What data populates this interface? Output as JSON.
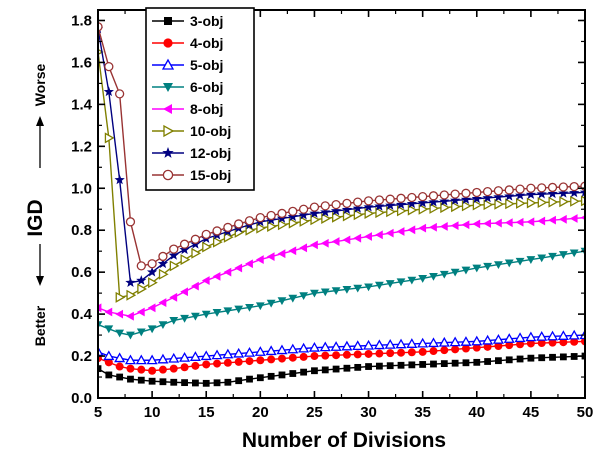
{
  "chart_data": {
    "type": "line",
    "title": "",
    "xlabel": "Number of Divisions",
    "ylabel": "IGD",
    "ylabel_top": "Worse",
    "ylabel_bottom": "Better",
    "xlim": [
      5,
      50
    ],
    "ylim": [
      0.0,
      1.85
    ],
    "xticks": [
      5,
      10,
      15,
      20,
      25,
      30,
      35,
      40,
      45,
      50
    ],
    "xtick_labels": [
      "5",
      "10",
      "15",
      "20",
      "25",
      "30",
      "35",
      "40",
      "45",
      "50"
    ],
    "yticks": [
      0.0,
      0.2,
      0.4,
      0.6,
      0.8,
      1.0,
      1.2,
      1.4,
      1.6,
      1.8
    ],
    "ytick_labels": [
      "0.0",
      "0.2",
      "0.4",
      "0.6",
      "0.8",
      "1.0",
      "1.2",
      "1.4",
      "1.6",
      "1.8"
    ],
    "grid": false,
    "legend_position": "top-left",
    "series": [
      {
        "name": "3-obj",
        "color": "#000000",
        "marker": "square",
        "anchors": [
          [
            5,
            0.14
          ],
          [
            6,
            0.11
          ],
          [
            7,
            0.1
          ],
          [
            8,
            0.09
          ],
          [
            10,
            0.08
          ],
          [
            12,
            0.075
          ],
          [
            15,
            0.07
          ],
          [
            17,
            0.075
          ],
          [
            19,
            0.09
          ],
          [
            22,
            0.11
          ],
          [
            25,
            0.13
          ],
          [
            30,
            0.15
          ],
          [
            35,
            0.16
          ],
          [
            40,
            0.17
          ],
          [
            45,
            0.19
          ],
          [
            50,
            0.2
          ]
        ]
      },
      {
        "name": "4-obj",
        "color": "#ff0000",
        "marker": "circle",
        "anchors": [
          [
            5,
            0.19
          ],
          [
            6,
            0.17
          ],
          [
            7,
            0.15
          ],
          [
            8,
            0.14
          ],
          [
            10,
            0.13
          ],
          [
            12,
            0.14
          ],
          [
            15,
            0.16
          ],
          [
            20,
            0.18
          ],
          [
            25,
            0.2
          ],
          [
            30,
            0.21
          ],
          [
            35,
            0.22
          ],
          [
            40,
            0.24
          ],
          [
            45,
            0.26
          ],
          [
            50,
            0.27
          ]
        ]
      },
      {
        "name": "5-obj",
        "color": "#0000ff",
        "marker": "triangle-up-open",
        "anchors": [
          [
            5,
            0.22
          ],
          [
            6,
            0.2
          ],
          [
            7,
            0.19
          ],
          [
            8,
            0.18
          ],
          [
            10,
            0.18
          ],
          [
            15,
            0.2
          ],
          [
            20,
            0.22
          ],
          [
            25,
            0.24
          ],
          [
            30,
            0.25
          ],
          [
            35,
            0.26
          ],
          [
            40,
            0.27
          ],
          [
            45,
            0.29
          ],
          [
            50,
            0.3
          ]
        ]
      },
      {
        "name": "6-obj",
        "color": "#008080",
        "marker": "triangle-down",
        "anchors": [
          [
            5,
            0.35
          ],
          [
            6,
            0.33
          ],
          [
            7,
            0.31
          ],
          [
            8,
            0.3
          ],
          [
            10,
            0.33
          ],
          [
            12,
            0.37
          ],
          [
            15,
            0.4
          ],
          [
            20,
            0.44
          ],
          [
            25,
            0.5
          ],
          [
            30,
            0.53
          ],
          [
            35,
            0.57
          ],
          [
            40,
            0.62
          ],
          [
            45,
            0.66
          ],
          [
            50,
            0.7
          ]
        ]
      },
      {
        "name": "8-obj",
        "color": "#ff00ff",
        "marker": "triangle-left",
        "anchors": [
          [
            5,
            0.43
          ],
          [
            6,
            0.41
          ],
          [
            7,
            0.4
          ],
          [
            8,
            0.39
          ],
          [
            10,
            0.43
          ],
          [
            12,
            0.48
          ],
          [
            15,
            0.56
          ],
          [
            18,
            0.62
          ],
          [
            20,
            0.66
          ],
          [
            25,
            0.73
          ],
          [
            30,
            0.77
          ],
          [
            35,
            0.81
          ],
          [
            40,
            0.83
          ],
          [
            45,
            0.84
          ],
          [
            50,
            0.86
          ]
        ]
      },
      {
        "name": "10-obj",
        "color": "#808000",
        "marker": "triangle-right-open",
        "anchors": [
          [
            5,
            1.65
          ],
          [
            6,
            1.24
          ],
          [
            7,
            0.48
          ],
          [
            8,
            0.49
          ],
          [
            10,
            0.55
          ],
          [
            12,
            0.63
          ],
          [
            15,
            0.72
          ],
          [
            18,
            0.79
          ],
          [
            20,
            0.81
          ],
          [
            25,
            0.85
          ],
          [
            30,
            0.88
          ],
          [
            35,
            0.9
          ],
          [
            40,
            0.92
          ],
          [
            45,
            0.93
          ],
          [
            50,
            0.94
          ]
        ]
      },
      {
        "name": "12-obj",
        "color": "#000080",
        "marker": "star",
        "anchors": [
          [
            5,
            1.76
          ],
          [
            6,
            1.46
          ],
          [
            7,
            1.04
          ],
          [
            8,
            0.55
          ],
          [
            9,
            0.56
          ],
          [
            10,
            0.6
          ],
          [
            12,
            0.68
          ],
          [
            15,
            0.76
          ],
          [
            18,
            0.81
          ],
          [
            20,
            0.84
          ],
          [
            25,
            0.88
          ],
          [
            30,
            0.91
          ],
          [
            35,
            0.93
          ],
          [
            40,
            0.95
          ],
          [
            45,
            0.97
          ],
          [
            50,
            0.98
          ]
        ]
      },
      {
        "name": "15-obj",
        "color": "#993333",
        "marker": "circle-open",
        "anchors": [
          [
            5,
            1.77
          ],
          [
            6,
            1.58
          ],
          [
            7,
            1.45
          ],
          [
            8,
            0.84
          ],
          [
            9,
            0.63
          ],
          [
            10,
            0.64
          ],
          [
            12,
            0.71
          ],
          [
            15,
            0.78
          ],
          [
            18,
            0.83
          ],
          [
            20,
            0.86
          ],
          [
            25,
            0.91
          ],
          [
            30,
            0.94
          ],
          [
            35,
            0.96
          ],
          [
            40,
            0.98
          ],
          [
            45,
            1.0
          ],
          [
            50,
            1.01
          ]
        ]
      }
    ]
  }
}
